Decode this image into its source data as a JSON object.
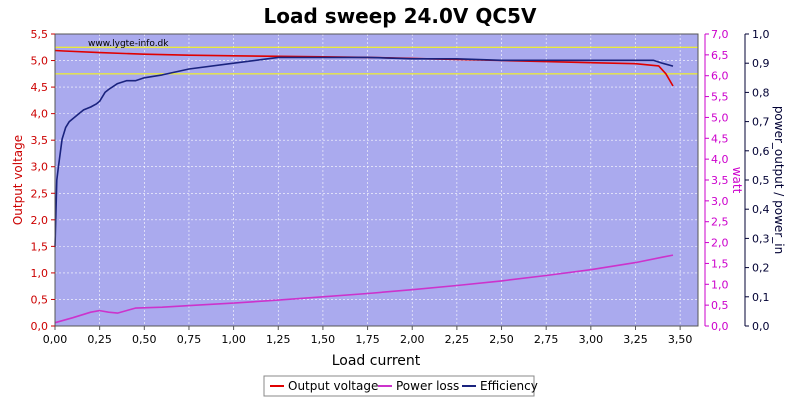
{
  "chart_data": {
    "type": "line",
    "title": "Load sweep 24.0V QC5V",
    "watermark": "www.lygte-info.dk",
    "xlabel": "Load current",
    "xlim": [
      0,
      3.6
    ],
    "xticks": [
      "0,00",
      "0,25",
      "0,50",
      "0,75",
      "1,00",
      "1,25",
      "1,50",
      "1,75",
      "2,00",
      "2,25",
      "2,50",
      "2,75",
      "3,00",
      "3,25",
      "3,50"
    ],
    "axes": {
      "left": {
        "label": "Output voltage",
        "range": [
          0,
          5.5
        ],
        "color": "#cc0000",
        "ticks": [
          "0,0",
          "0,5",
          "1,0",
          "1,5",
          "2,0",
          "2,5",
          "3,0",
          "3,5",
          "4,0",
          "4,5",
          "5,0",
          "5,5"
        ]
      },
      "right1": {
        "label": "watt",
        "range": [
          0,
          7
        ],
        "color": "#cc00cc",
        "ticks": [
          "0,0",
          "0,5",
          "1,0",
          "1,5",
          "2,0",
          "2,5",
          "3,0",
          "3,5",
          "4,0",
          "4,5",
          "5,0",
          "5,5",
          "6,0",
          "6,5",
          "7,0"
        ]
      },
      "right2": {
        "label": "power_output / power_in",
        "range": [
          0,
          1
        ],
        "color": "#000033",
        "ticks": [
          "0,0",
          "0,1",
          "0,2",
          "0,3",
          "0,4",
          "0,5",
          "0,6",
          "0,7",
          "0,8",
          "0,9",
          "1,0"
        ]
      }
    },
    "reference_lines": [
      {
        "axis": "left",
        "value": 5.25,
        "color": "#ffff00"
      },
      {
        "axis": "left",
        "value": 4.75,
        "color": "#ffff00"
      }
    ],
    "series": [
      {
        "name": "Output voltage",
        "axis": "left",
        "color": "#e00000",
        "x": [
          0,
          0.05,
          0.25,
          0.5,
          0.75,
          1.0,
          1.25,
          1.5,
          1.75,
          2.0,
          2.25,
          2.5,
          2.75,
          3.0,
          3.25,
          3.38,
          3.42,
          3.46
        ],
        "y": [
          5.19,
          5.18,
          5.15,
          5.12,
          5.1,
          5.09,
          5.08,
          5.07,
          5.06,
          5.04,
          5.02,
          5.0,
          4.98,
          4.96,
          4.94,
          4.9,
          4.75,
          4.52
        ]
      },
      {
        "name": "Power loss",
        "axis": "right1",
        "color": "#cc33cc",
        "x": [
          0,
          0.1,
          0.2,
          0.25,
          0.3,
          0.35,
          0.45,
          0.6,
          0.8,
          1.0,
          1.25,
          1.5,
          1.75,
          2.0,
          2.25,
          2.5,
          2.75,
          3.0,
          3.25,
          3.4,
          3.46
        ],
        "y": [
          0.08,
          0.2,
          0.33,
          0.37,
          0.33,
          0.31,
          0.43,
          0.45,
          0.5,
          0.55,
          0.62,
          0.7,
          0.78,
          0.87,
          0.97,
          1.08,
          1.21,
          1.35,
          1.52,
          1.65,
          1.7
        ]
      },
      {
        "name": "Efficiency",
        "axis": "right2",
        "color": "#1a237e",
        "x": [
          0,
          0.01,
          0.02,
          0.04,
          0.06,
          0.08,
          0.12,
          0.16,
          0.2,
          0.23,
          0.25,
          0.28,
          0.3,
          0.35,
          0.4,
          0.45,
          0.5,
          0.6,
          0.75,
          1.0,
          1.25,
          1.5,
          1.75,
          2.0,
          2.25,
          2.5,
          2.75,
          3.0,
          3.25,
          3.35,
          3.4,
          3.46
        ],
        "y": [
          0.27,
          0.5,
          0.55,
          0.64,
          0.68,
          0.7,
          0.72,
          0.74,
          0.75,
          0.76,
          0.77,
          0.8,
          0.81,
          0.83,
          0.84,
          0.84,
          0.85,
          0.86,
          0.88,
          0.9,
          0.92,
          0.92,
          0.92,
          0.915,
          0.915,
          0.91,
          0.91,
          0.91,
          0.91,
          0.91,
          0.9,
          0.89
        ]
      }
    ],
    "legend": {
      "position": "bottom-center",
      "entries": [
        {
          "label": "Output voltage",
          "color": "#e00000"
        },
        {
          "label": "Power loss",
          "color": "#cc33cc"
        },
        {
          "label": "Efficiency",
          "color": "#1a237e"
        }
      ]
    },
    "grid": true,
    "plot_background": "#aaaaee"
  }
}
